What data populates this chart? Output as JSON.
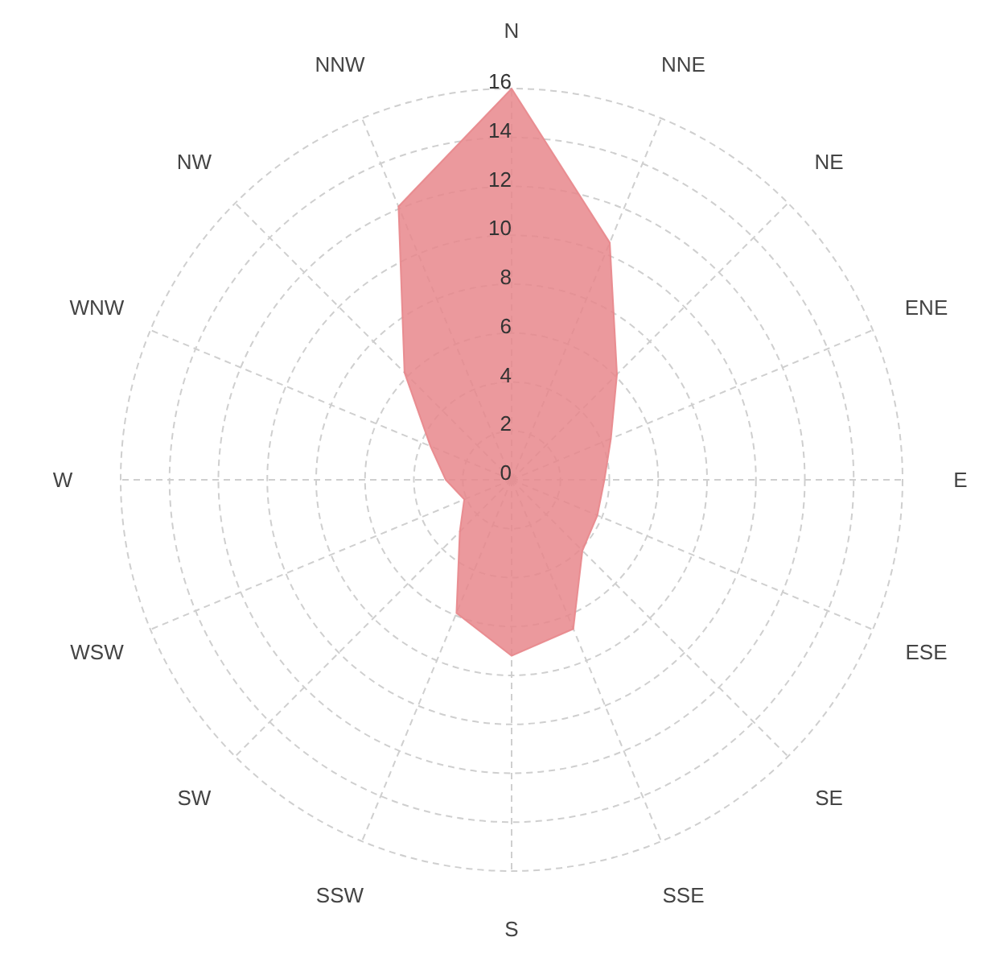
{
  "chart_data": {
    "type": "radar",
    "categories": [
      "N",
      "NNE",
      "NE",
      "ENE",
      "E",
      "ESE",
      "SE",
      "SSE",
      "S",
      "SSW",
      "SW",
      "WSW",
      "W",
      "WNW",
      "NW",
      "NNW"
    ],
    "series": [
      {
        "color": "#e8878c",
        "values": [
          16,
          10.5,
          6.1,
          4.4,
          3.8,
          3.8,
          4.1,
          6.6,
          7.2,
          5.9,
          3.0,
          2.1,
          2.7,
          3.6,
          6.2,
          12.1
        ]
      }
    ],
    "ylim": [
      0,
      16
    ],
    "yticks": [
      0,
      2,
      4,
      6,
      8,
      10,
      12,
      14,
      16
    ],
    "grid": true
  }
}
